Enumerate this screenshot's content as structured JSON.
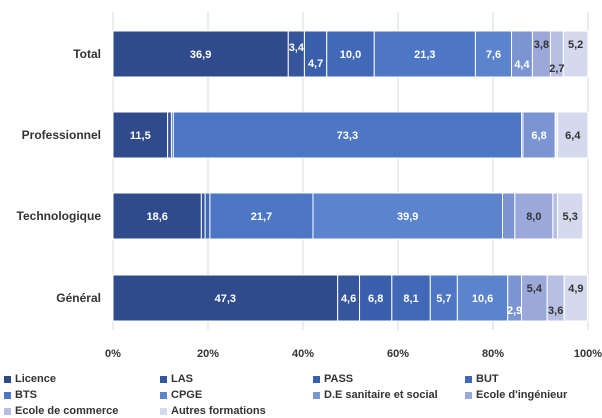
{
  "chart_data": {
    "type": "bar",
    "orientation": "horizontal",
    "stacked": true,
    "percent": true,
    "categories": [
      "Total",
      "Professionnel",
      "Technologique",
      "Général"
    ],
    "xlim": [
      0,
      100
    ],
    "x_ticks": [
      "0%",
      "20%",
      "40%",
      "60%",
      "80%",
      "100%"
    ],
    "grid": "vertical",
    "legend_position": "bottom",
    "series": [
      {
        "name": "Licence",
        "color": "#2f4b8c",
        "values": [
          36.9,
          11.5,
          18.6,
          47.3
        ]
      },
      {
        "name": "LAS",
        "color": "#35559c",
        "values": [
          3.4,
          0.8,
          0.8,
          4.6
        ]
      },
      {
        "name": "PASS",
        "color": "#3a60ad",
        "values": [
          4.7,
          0.0,
          0.0,
          6.8
        ]
      },
      {
        "name": "BUT",
        "color": "#4169b8",
        "values": [
          10.0,
          0.4,
          1.0,
          8.1
        ]
      },
      {
        "name": "BTS",
        "color": "#4d77c4",
        "values": [
          21.3,
          73.3,
          21.7,
          5.7
        ]
      },
      {
        "name": "CPGE",
        "color": "#5b84cc",
        "values": [
          7.6,
          0.3,
          39.9,
          10.6
        ]
      },
      {
        "name": "D.E sanitaire et social",
        "color": "#7b95d2",
        "values": [
          4.4,
          6.8,
          2.6,
          2.9
        ]
      },
      {
        "name": "Ecole d'ingénieur",
        "color": "#9aa9da",
        "values": [
          3.8,
          0.2,
          8.0,
          5.4
        ]
      },
      {
        "name": "Ecole de commerce",
        "color": "#b7c0e3",
        "values": [
          2.7,
          0.3,
          1.0,
          3.6
        ]
      },
      {
        "name": "Autres formations",
        "color": "#d5d9ee",
        "values": [
          5.2,
          6.4,
          5.3,
          4.9
        ]
      }
    ],
    "data_labels": [
      [
        {
          "series": 0,
          "text": "36,9",
          "dy": 0
        },
        {
          "series": 1,
          "text": "3,4",
          "dy": -7
        },
        {
          "series": 2,
          "text": "4,7",
          "dy": 9
        },
        {
          "series": 3,
          "text": "10,0",
          "dy": 0
        },
        {
          "series": 4,
          "text": "21,3",
          "dy": 0
        },
        {
          "series": 5,
          "text": "7,6",
          "dy": 0
        },
        {
          "series": 6,
          "text": "4,4",
          "dy": 10
        },
        {
          "series": 7,
          "text": "3,8",
          "dy": -10
        },
        {
          "series": 8,
          "text": "2,7",
          "dy": 14
        },
        {
          "series": 9,
          "text": "5,2",
          "dy": -10
        }
      ],
      [
        {
          "series": 0,
          "text": "11,5",
          "dy": 0
        },
        {
          "series": 4,
          "text": "73,3",
          "dy": 0
        },
        {
          "series": 6,
          "text": "6,8",
          "dy": 0
        },
        {
          "series": 9,
          "text": "6,4",
          "dy": 0
        }
      ],
      [
        {
          "series": 0,
          "text": "18,6",
          "dy": 0
        },
        {
          "series": 4,
          "text": "21,7",
          "dy": 0
        },
        {
          "series": 5,
          "text": "39,9",
          "dy": 0
        },
        {
          "series": 7,
          "text": "8,0",
          "dy": 0
        },
        {
          "series": 9,
          "text": "5,3",
          "dy": 0
        }
      ],
      [
        {
          "series": 0,
          "text": "47,3",
          "dy": 0
        },
        {
          "series": 1,
          "text": "4,6",
          "dy": 0
        },
        {
          "series": 2,
          "text": "6,8",
          "dy": 0
        },
        {
          "series": 3,
          "text": "8,1",
          "dy": 0
        },
        {
          "series": 4,
          "text": "5,7",
          "dy": 0
        },
        {
          "series": 5,
          "text": "10,6",
          "dy": 0
        },
        {
          "series": 6,
          "text": "2,9",
          "dy": 12
        },
        {
          "series": 7,
          "text": "5,4",
          "dy": -10
        },
        {
          "series": 8,
          "text": "3,6",
          "dy": 12
        },
        {
          "series": 9,
          "text": "4,9",
          "dy": -10
        }
      ]
    ],
    "label_colors": {
      "dark": "#ffffff",
      "light": "#333333"
    }
  }
}
